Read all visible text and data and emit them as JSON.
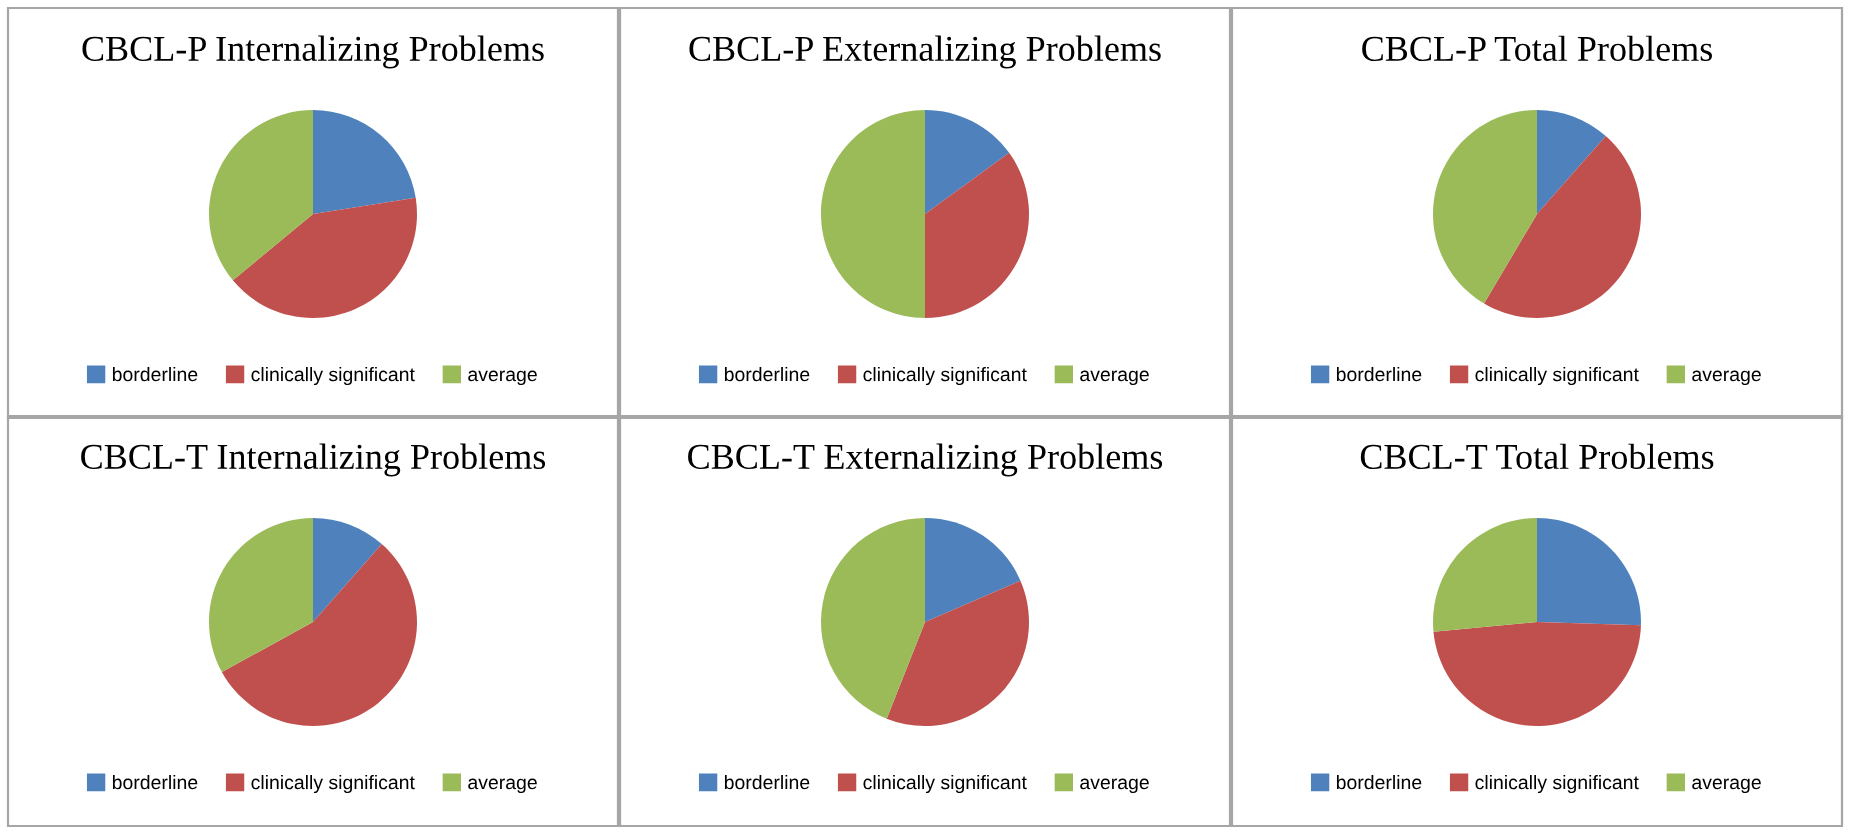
{
  "chart_data": [
    {
      "type": "pie",
      "title": "CBCL-P Internalizing Problems",
      "categories": [
        "borderline",
        "clinically significant",
        "average"
      ],
      "values": [
        22.5,
        41.5,
        36
      ],
      "colors": [
        "#4f81bd",
        "#c0504d",
        "#9bbb59"
      ],
      "legend": "bottom"
    },
    {
      "type": "pie",
      "title": "CBCL-P Externalizing Problems",
      "categories": [
        "borderline",
        "clinically significant",
        "average"
      ],
      "values": [
        15,
        35,
        50
      ],
      "colors": [
        "#4f81bd",
        "#c0504d",
        "#9bbb59"
      ],
      "legend": "bottom"
    },
    {
      "type": "pie",
      "title": "CBCL-P Total Problems",
      "categories": [
        "borderline",
        "clinically significant",
        "average"
      ],
      "values": [
        11.5,
        47,
        41.5
      ],
      "colors": [
        "#4f81bd",
        "#c0504d",
        "#9bbb59"
      ],
      "legend": "bottom"
    },
    {
      "type": "pie",
      "title": "CBCL-T Internalizing Problems",
      "categories": [
        "borderline",
        "clinically significant",
        "average"
      ],
      "values": [
        11.5,
        55.5,
        33
      ],
      "colors": [
        "#4f81bd",
        "#c0504d",
        "#9bbb59"
      ],
      "legend": "bottom"
    },
    {
      "type": "pie",
      "title": "CBCL-T Externalizing Problems",
      "categories": [
        "borderline",
        "clinically significant",
        "average"
      ],
      "values": [
        18.5,
        37.5,
        44
      ],
      "colors": [
        "#4f81bd",
        "#c0504d",
        "#9bbb59"
      ],
      "legend": "bottom"
    },
    {
      "type": "pie",
      "title": "CBCL-T Total Problems",
      "categories": [
        "borderline",
        "clinically significant",
        "average"
      ],
      "values": [
        25.5,
        48,
        26.5
      ],
      "colors": [
        "#4f81bd",
        "#c0504d",
        "#9bbb59"
      ],
      "legend": "bottom"
    }
  ]
}
